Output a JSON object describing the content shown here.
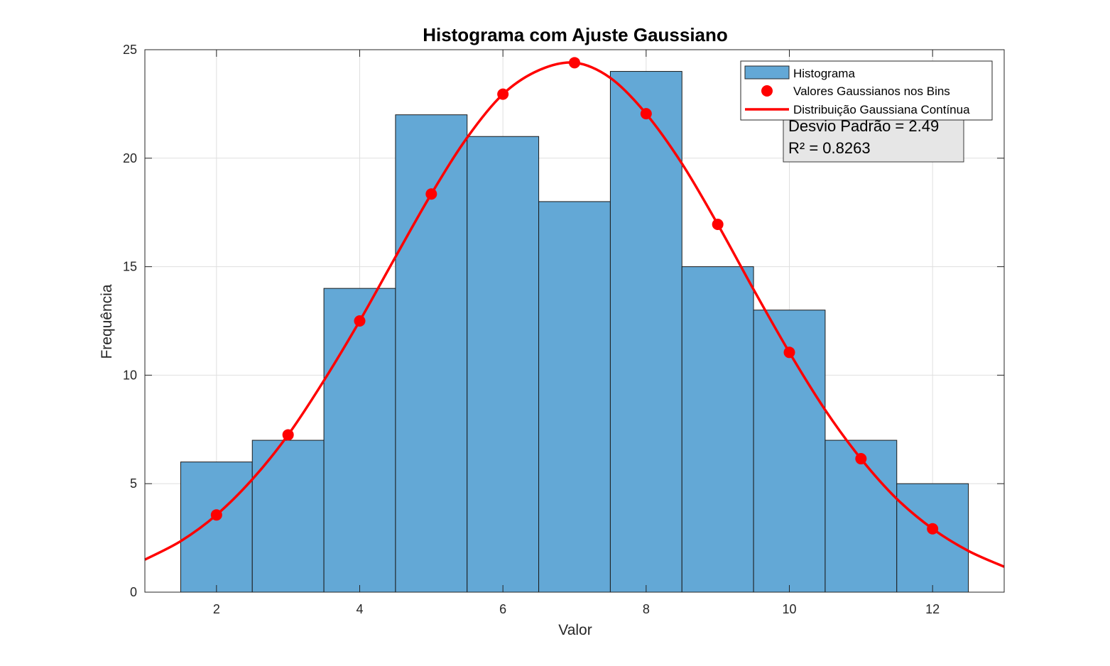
{
  "chart_data": {
    "type": "bar",
    "title": "Histograma com Ajuste Gaussiano",
    "xlabel": "Valor",
    "ylabel": "Frequência",
    "xlim": [
      1,
      13
    ],
    "ylim": [
      0,
      25
    ],
    "xticks": [
      2,
      4,
      6,
      8,
      10,
      12
    ],
    "yticks": [
      0,
      5,
      10,
      15,
      20,
      25
    ],
    "grid": true,
    "legend_position": "top-right",
    "bin_width": 1,
    "colors": {
      "bars": "#63a8d6",
      "fit": "#ff0000",
      "stats_box": "#e6e6e6"
    },
    "series": [
      {
        "name": "Histograma",
        "type": "bar",
        "x": [
          2,
          3,
          4,
          5,
          6,
          7,
          8,
          9,
          10,
          11,
          12
        ],
        "values": [
          6,
          7,
          14,
          22,
          21,
          18,
          24,
          15,
          13,
          7,
          5
        ]
      },
      {
        "name": "Valores Gaussianos nos Bins",
        "type": "scatter",
        "x": [
          2,
          3,
          4,
          5,
          6,
          7,
          8,
          9,
          10,
          11,
          12
        ],
        "values": [
          3.56,
          7.25,
          12.5,
          18.35,
          22.95,
          24.4,
          22.05,
          16.95,
          11.05,
          6.15,
          2.92
        ]
      },
      {
        "name": "Distribuição Gaussiana Contínua",
        "type": "line",
        "x": [
          1.0,
          1.5,
          2.0,
          2.5,
          3.0,
          3.5,
          4.0,
          4.5,
          5.0,
          5.5,
          6.0,
          6.5,
          7.0,
          7.5,
          8.0,
          8.5,
          9.0,
          9.5,
          10.0,
          10.5,
          11.0,
          11.5,
          12.0,
          12.5,
          13.0
        ],
        "values": [
          1.5,
          2.35,
          3.56,
          5.2,
          7.25,
          9.75,
          12.5,
          15.45,
          18.35,
          20.95,
          22.95,
          24.05,
          24.4,
          23.7,
          22.05,
          19.75,
          16.95,
          13.95,
          11.05,
          8.4,
          6.15,
          4.3,
          2.92,
          1.9,
          1.17
        ]
      }
    ],
    "stats_box": {
      "lines": [
        "Desvio Padrão = 2.49",
        "R² = 0.8263"
      ]
    }
  }
}
